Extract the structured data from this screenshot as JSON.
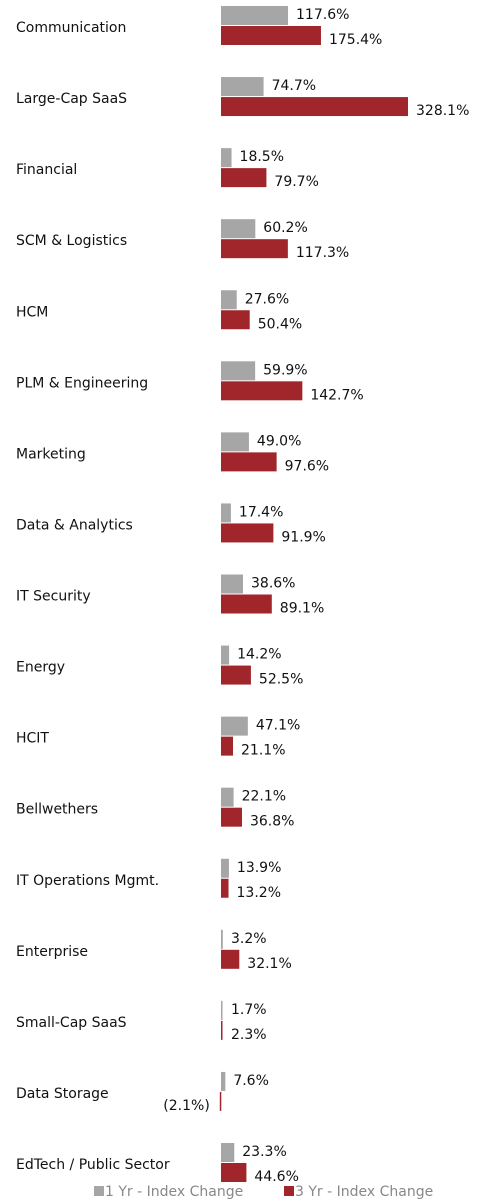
{
  "chart_data": {
    "type": "hbar",
    "categories": [
      "Communication",
      "Large-Cap SaaS",
      "Financial",
      "SCM & Logistics",
      "HCM",
      "PLM & Engineering",
      "Marketing",
      "Data & Analytics",
      "IT Security",
      "Energy",
      "HCIT",
      "Bellwethers",
      "IT Operations Mgmt.",
      "Enterprise",
      "Small-Cap SaaS",
      "Data Storage",
      "EdTech / Public Sector"
    ],
    "series": [
      {
        "name": "1 Yr - Index Change",
        "color": "#a6a6a6",
        "values": [
          117.6,
          74.7,
          18.5,
          60.2,
          27.6,
          59.9,
          49.0,
          17.4,
          38.6,
          14.2,
          47.1,
          22.1,
          13.9,
          3.2,
          1.7,
          7.6,
          23.3
        ],
        "value_labels": [
          "117.6%",
          "74.7%",
          "18.5%",
          "60.2%",
          "27.6%",
          "59.9%",
          "49.0%",
          "17.4%",
          "38.6%",
          "14.2%",
          "47.1%",
          "22.1%",
          "13.9%",
          "3.2%",
          "1.7%",
          "7.6%",
          "23.3%"
        ]
      },
      {
        "name": "3 Yr - Index Change",
        "color": "#a0262c",
        "values": [
          175.4,
          328.1,
          79.7,
          117.3,
          50.4,
          142.7,
          97.6,
          91.9,
          89.1,
          52.5,
          21.1,
          36.8,
          13.2,
          32.1,
          2.3,
          -2.1,
          44.6
        ],
        "value_labels": [
          "175.4%",
          "328.1%",
          "79.7%",
          "117.3%",
          "50.4%",
          "142.7%",
          "97.6%",
          "91.9%",
          "89.1%",
          "52.5%",
          "21.1%",
          "36.8%",
          "13.2%",
          "32.1%",
          "2.3%",
          "(2.1%)",
          "44.6%"
        ]
      }
    ],
    "legend": "bottom"
  }
}
